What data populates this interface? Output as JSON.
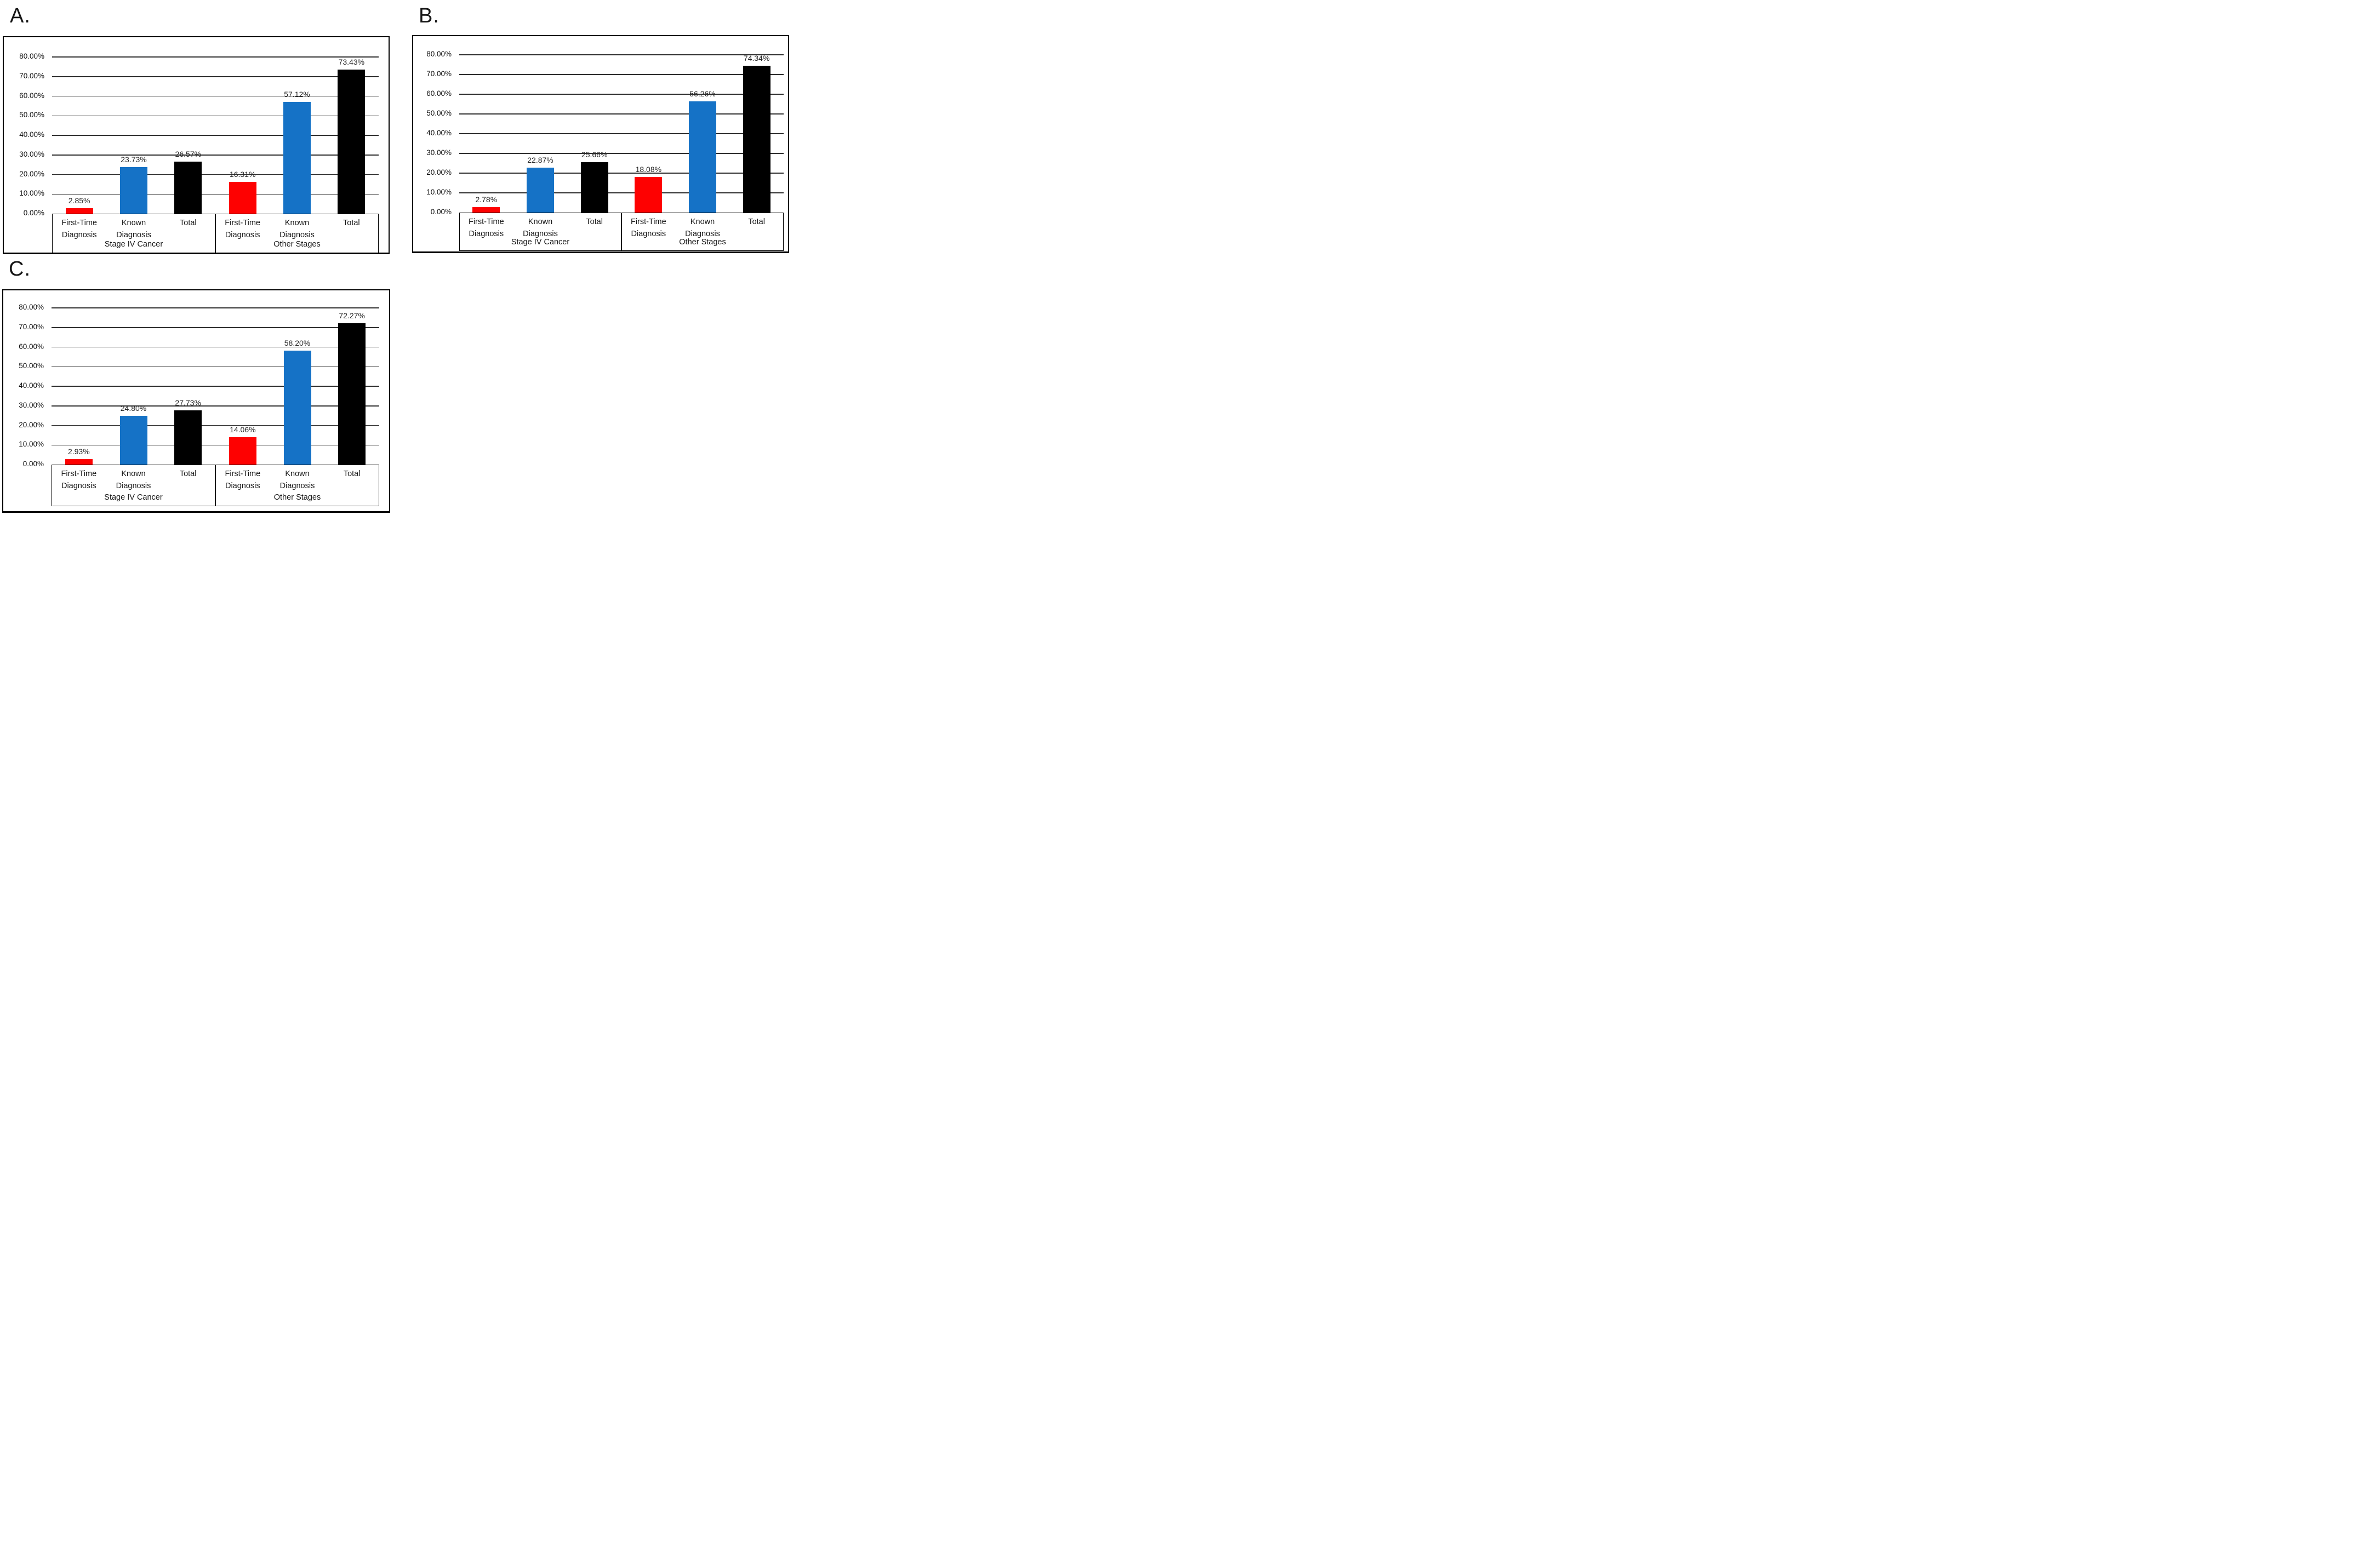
{
  "page": {
    "background": "#ffffff"
  },
  "colors": {
    "first_time_bar": "#fe0101",
    "known_bar": "#1572c6",
    "total_bar": "#000000",
    "gridline": "#2e2e2e"
  },
  "chart_data": [
    {
      "letter": "A.",
      "type": "bar",
      "ylim": [
        0,
        80
      ],
      "grid": true,
      "legend": "none",
      "ylabel_ticks": [
        "80.00%",
        "70.00%",
        "60.00%",
        "50.00%",
        "40.00%",
        "30.00%",
        "20.00%",
        "10.00%",
        "0.00%"
      ],
      "categories": [
        "First-Time Diagnosis",
        "Known Diagnosis",
        "Total"
      ],
      "series_colors": [
        "#fe0101",
        "#1572c6",
        "#000000"
      ],
      "groups": [
        {
          "label": "Stage IV Cancer",
          "values": [
            2.85,
            23.73,
            26.57
          ],
          "value_labels": [
            "2.85%",
            "23.73%",
            "26.57%"
          ]
        },
        {
          "label": "Other Stages",
          "values": [
            16.31,
            57.12,
            73.43
          ],
          "value_labels": [
            "16.31%",
            "57.12%",
            "73.43%"
          ]
        }
      ]
    },
    {
      "letter": "B.",
      "type": "bar",
      "ylim": [
        0,
        80
      ],
      "grid": true,
      "legend": "none",
      "ylabel_ticks": [
        "80.00%",
        "70.00%",
        "60.00%",
        "50.00%",
        "40.00%",
        "30.00%",
        "20.00%",
        "10.00%",
        "0.00%"
      ],
      "categories": [
        "First-Time Diagnosis",
        "Known Diagnosis",
        "Total"
      ],
      "series_colors": [
        "#fe0101",
        "#1572c6",
        "#000000"
      ],
      "groups": [
        {
          "label": "Stage IV Cancer",
          "values": [
            2.78,
            22.87,
            25.66
          ],
          "value_labels": [
            "2.78%",
            "22.87%",
            "25.66%"
          ]
        },
        {
          "label": "Other Stages",
          "values": [
            18.08,
            56.26,
            74.34
          ],
          "value_labels": [
            "18.08%",
            "56.26%",
            "74.34%"
          ]
        }
      ]
    },
    {
      "letter": "C.",
      "type": "bar",
      "ylim": [
        0,
        80
      ],
      "grid": true,
      "legend": "none",
      "ylabel_ticks": [
        "80.00%",
        "70.00%",
        "60.00%",
        "50.00%",
        "40.00%",
        "30.00%",
        "20.00%",
        "10.00%",
        "0.00%"
      ],
      "categories": [
        "First-Time Diagnosis",
        "Known Diagnosis",
        "Total"
      ],
      "series_colors": [
        "#fe0101",
        "#1572c6",
        "#000000"
      ],
      "groups": [
        {
          "label": "Stage IV Cancer",
          "values": [
            2.93,
            24.8,
            27.73
          ],
          "value_labels": [
            "2.93%",
            "24.80%",
            "27.73%"
          ]
        },
        {
          "label": "Other Stages",
          "values": [
            14.06,
            58.2,
            72.27
          ],
          "value_labels": [
            "14.06%",
            "58.20%",
            "72.27%"
          ]
        }
      ]
    }
  ]
}
